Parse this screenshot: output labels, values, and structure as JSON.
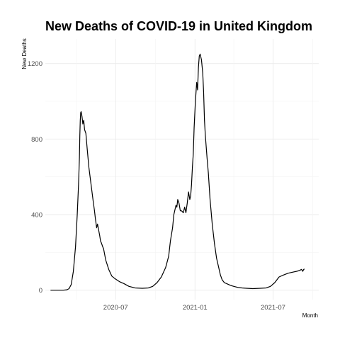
{
  "chart_data": {
    "type": "line",
    "title": "New Deaths of COVID-19 in United Kingdom",
    "xlabel": "Month",
    "ylabel": "New Deaths",
    "x_scale": "date",
    "xlim": [
      "2020-01-20",
      "2021-10-15"
    ],
    "ylim": [
      -50,
      1330
    ],
    "x_ticks": [
      {
        "date": "2020-07-01",
        "label": "2020-07"
      },
      {
        "date": "2021-01-01",
        "label": "2021-01"
      },
      {
        "date": "2021-07-01",
        "label": "2021-07"
      }
    ],
    "y_ticks": [
      {
        "value": 0,
        "label": "0"
      },
      {
        "value": 400,
        "label": "400"
      },
      {
        "value": 800,
        "label": "800"
      },
      {
        "value": 1200,
        "label": "1200"
      }
    ],
    "grid": true,
    "legend": "none",
    "line_color": "#000000",
    "series": [
      {
        "x": [
          "2020-02-01",
          "2020-03-01",
          "2020-03-10",
          "2020-03-15",
          "2020-03-20",
          "2020-03-25",
          "2020-03-30",
          "2020-04-03",
          "2020-04-06",
          "2020-04-08",
          "2020-04-09",
          "2020-04-10",
          "2020-04-11",
          "2020-04-12",
          "2020-04-14",
          "2020-04-16",
          "2020-04-18",
          "2020-04-20",
          "2020-04-23",
          "2020-04-26",
          "2020-04-30",
          "2020-05-05",
          "2020-05-10",
          "2020-05-13",
          "2020-05-15",
          "2020-05-18",
          "2020-05-20",
          "2020-05-25",
          "2020-05-27",
          "2020-05-29",
          "2020-06-01",
          "2020-06-03",
          "2020-06-08",
          "2020-06-15",
          "2020-06-22",
          "2020-06-30",
          "2020-07-10",
          "2020-07-20",
          "2020-08-01",
          "2020-08-15",
          "2020-09-01",
          "2020-09-15",
          "2020-09-25",
          "2020-10-05",
          "2020-10-15",
          "2020-10-25",
          "2020-11-01",
          "2020-11-05",
          "2020-11-10",
          "2020-11-13",
          "2020-11-15",
          "2020-11-18",
          "2020-11-20",
          "2020-11-22",
          "2020-11-25",
          "2020-11-28",
          "2020-12-01",
          "2020-12-05",
          "2020-12-08",
          "2020-12-11",
          "2020-12-14",
          "2020-12-17",
          "2020-12-20",
          "2020-12-22",
          "2020-12-24",
          "2020-12-26",
          "2020-12-28",
          "2020-12-30",
          "2021-01-02",
          "2021-01-05",
          "2021-01-07",
          "2021-01-09",
          "2021-01-11",
          "2021-01-13",
          "2021-01-16",
          "2021-01-19",
          "2021-01-21",
          "2021-01-23",
          "2021-01-25",
          "2021-01-27",
          "2021-01-29",
          "2021-02-01",
          "2021-02-05",
          "2021-02-10",
          "2021-02-15",
          "2021-02-20",
          "2021-02-25",
          "2021-03-01",
          "2021-03-05",
          "2021-03-10",
          "2021-03-15",
          "2021-03-20",
          "2021-03-25",
          "2021-04-01",
          "2021-04-10",
          "2021-04-20",
          "2021-05-01",
          "2021-05-15",
          "2021-06-01",
          "2021-06-15",
          "2021-06-25",
          "2021-07-05",
          "2021-07-15",
          "2021-07-25",
          "2021-08-05",
          "2021-08-15",
          "2021-08-25",
          "2021-09-01",
          "2021-09-05",
          "2021-09-08",
          "2021-09-10",
          "2021-09-12"
        ],
        "y": [
          0,
          0,
          2,
          8,
          30,
          100,
          230,
          400,
          560,
          700,
          820,
          900,
          940,
          945,
          920,
          880,
          900,
          850,
          830,
          750,
          650,
          560,
          470,
          420,
          380,
          330,
          350,
          290,
          260,
          250,
          230,
          220,
          160,
          110,
          75,
          60,
          45,
          35,
          20,
          12,
          10,
          12,
          20,
          40,
          70,
          120,
          180,
          260,
          330,
          400,
          420,
          450,
          440,
          480,
          460,
          420,
          420,
          410,
          440,
          410,
          460,
          520,
          480,
          500,
          560,
          650,
          720,
          860,
          1000,
          1100,
          1060,
          1180,
          1240,
          1250,
          1220,
          1150,
          1050,
          900,
          820,
          760,
          700,
          620,
          480,
          350,
          250,
          170,
          120,
          80,
          55,
          40,
          35,
          30,
          25,
          20,
          15,
          12,
          10,
          8,
          10,
          12,
          20,
          40,
          70,
          80,
          90,
          95,
          100,
          105,
          110,
          100,
          110,
          112
        ]
      }
    ]
  }
}
